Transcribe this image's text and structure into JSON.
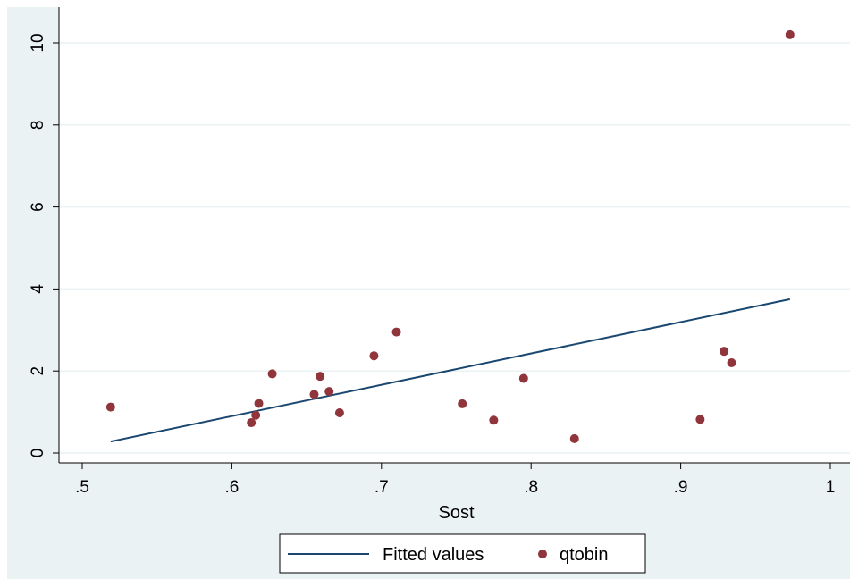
{
  "chart_data": {
    "type": "scatter",
    "xlabel": "Sost",
    "ylabel": "",
    "xlim": [
      0.5,
      1.0
    ],
    "ylim": [
      0,
      10
    ],
    "xticks": [
      0.5,
      0.6,
      0.7,
      0.8,
      0.9,
      1.0
    ],
    "xtick_labels": [
      ".5",
      ".6",
      ".7",
      ".8",
      ".9",
      "1"
    ],
    "yticks": [
      0,
      2,
      4,
      6,
      8,
      10
    ],
    "ytick_labels": [
      "0",
      "2",
      "4",
      "6",
      "8",
      "10"
    ],
    "grid": "horizontal",
    "legend_position": "bottom",
    "colors": {
      "background": "#eaf2f3",
      "plot_background": "#ffffff",
      "grid": "#eaf2f3",
      "fitted_line": "#1a476f",
      "points": "#90353b"
    },
    "series": [
      {
        "name": "Fitted values",
        "kind": "line",
        "x": [
          0.519,
          0.973
        ],
        "y": [
          0.28,
          3.75
        ]
      },
      {
        "name": "qtobin",
        "kind": "scatter",
        "x": [
          0.519,
          0.613,
          0.616,
          0.618,
          0.627,
          0.655,
          0.659,
          0.665,
          0.672,
          0.695,
          0.71,
          0.754,
          0.775,
          0.795,
          0.829,
          0.913,
          0.929,
          0.934,
          0.973
        ],
        "y": [
          1.12,
          0.74,
          0.92,
          1.21,
          1.93,
          1.43,
          1.87,
          1.5,
          0.98,
          2.37,
          2.95,
          1.2,
          0.8,
          1.82,
          0.35,
          0.82,
          2.48,
          2.2,
          10.2
        ]
      }
    ]
  }
}
